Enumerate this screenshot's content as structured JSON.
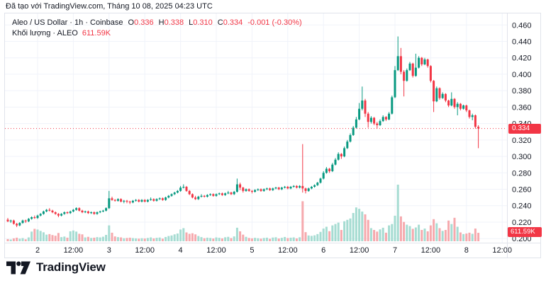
{
  "attribution": "Đã tạo với TradingView.com, Tháng 10 08, 2025 04:23 UTC",
  "legend": {
    "symbol_title": "Aleo / US Dollar · 1h · Coinbase",
    "ohlc": {
      "o_label": "O",
      "o": "0.336",
      "h_label": "H",
      "h": "0.338",
      "l_label": "L",
      "l": "0.310",
      "c_label": "C",
      "c": "0.334",
      "change": "-0.001 (-0.30%)"
    },
    "volume_title": "Khối lượng · ALEO",
    "volume_value": "611.59K"
  },
  "footer": {
    "brand": "TradingView"
  },
  "colors": {
    "up": "#089981",
    "down": "#f23645",
    "vol_up": "#a6dcd2",
    "vol_down": "#f6a9ad",
    "accent_red": "#f23645",
    "text": "#131722",
    "grid": "#f0f3fa",
    "axis_border": "#e0e3eb",
    "background": "#ffffff"
  },
  "chart_data": {
    "type": "candlestick+volume",
    "symbol": "Aleo / US Dollar",
    "exchange": "Coinbase",
    "interval": "1h",
    "legend_position": "top-left",
    "grid": true,
    "ylim": [
      0.195,
      0.474
    ],
    "price_axis_ticks": [
      0.2,
      0.22,
      0.24,
      0.26,
      0.28,
      0.3,
      0.32,
      0.34,
      0.36,
      0.38,
      0.4,
      0.42,
      0.44,
      0.46
    ],
    "time_ticks": [
      {
        "i": 10,
        "label": "2"
      },
      {
        "i": 22,
        "label": "12:00"
      },
      {
        "i": 34,
        "label": "3"
      },
      {
        "i": 46,
        "label": "12:00"
      },
      {
        "i": 58,
        "label": "4"
      },
      {
        "i": 70,
        "label": "12:00"
      },
      {
        "i": 82,
        "label": "5"
      },
      {
        "i": 94,
        "label": "12:00"
      },
      {
        "i": 106,
        "label": "6"
      },
      {
        "i": 118,
        "label": "12:00"
      },
      {
        "i": 130,
        "label": "7"
      },
      {
        "i": 142,
        "label": "12:00"
      },
      {
        "i": 154,
        "label": "8"
      },
      {
        "i": 166,
        "label": "12:00"
      }
    ],
    "last": {
      "open": 0.336,
      "high": 0.338,
      "low": 0.31,
      "close": 0.334,
      "change": -0.001,
      "change_pct": "-0.30%",
      "volume_display": "611.59K"
    },
    "volume_unit": "K",
    "candles_format": [
      "open",
      "high",
      "low",
      "close",
      "volume"
    ],
    "candles": [
      [
        0.223,
        0.225,
        0.22,
        0.221,
        160
      ],
      [
        0.221,
        0.223,
        0.219,
        0.222,
        130
      ],
      [
        0.222,
        0.223,
        0.217,
        0.218,
        210
      ],
      [
        0.218,
        0.219,
        0.214,
        0.216,
        260
      ],
      [
        0.216,
        0.22,
        0.215,
        0.219,
        190
      ],
      [
        0.219,
        0.223,
        0.218,
        0.222,
        230
      ],
      [
        0.222,
        0.223,
        0.219,
        0.221,
        140
      ],
      [
        0.221,
        0.225,
        0.22,
        0.224,
        280
      ],
      [
        0.224,
        0.227,
        0.223,
        0.226,
        700
      ],
      [
        0.226,
        0.228,
        0.224,
        0.225,
        900
      ],
      [
        0.225,
        0.229,
        0.224,
        0.228,
        850
      ],
      [
        0.228,
        0.231,
        0.227,
        0.23,
        750
      ],
      [
        0.23,
        0.234,
        0.229,
        0.233,
        650
      ],
      [
        0.233,
        0.236,
        0.232,
        0.235,
        480
      ],
      [
        0.235,
        0.237,
        0.233,
        0.234,
        520
      ],
      [
        0.234,
        0.235,
        0.231,
        0.232,
        450
      ],
      [
        0.232,
        0.233,
        0.229,
        0.23,
        400
      ],
      [
        0.23,
        0.231,
        0.226,
        0.228,
        600
      ],
      [
        0.228,
        0.231,
        0.227,
        0.23,
        300
      ],
      [
        0.23,
        0.233,
        0.229,
        0.232,
        340
      ],
      [
        0.232,
        0.233,
        0.23,
        0.231,
        260
      ],
      [
        0.231,
        0.234,
        0.23,
        0.233,
        720
      ],
      [
        0.233,
        0.236,
        0.232,
        0.235,
        780
      ],
      [
        0.235,
        0.238,
        0.234,
        0.237,
        700
      ],
      [
        0.237,
        0.238,
        0.233,
        0.234,
        540
      ],
      [
        0.234,
        0.235,
        0.231,
        0.232,
        500
      ],
      [
        0.232,
        0.234,
        0.231,
        0.233,
        280
      ],
      [
        0.233,
        0.234,
        0.23,
        0.231,
        320
      ],
      [
        0.231,
        0.233,
        0.23,
        0.232,
        240
      ],
      [
        0.232,
        0.233,
        0.229,
        0.23,
        260
      ],
      [
        0.23,
        0.233,
        0.229,
        0.232,
        300
      ],
      [
        0.232,
        0.234,
        0.231,
        0.233,
        280
      ],
      [
        0.233,
        0.235,
        0.232,
        0.234,
        330
      ],
      [
        0.234,
        0.238,
        0.233,
        0.237,
        460
      ],
      [
        0.237,
        0.258,
        0.236,
        0.249,
        1150
      ],
      [
        0.249,
        0.251,
        0.246,
        0.247,
        620
      ],
      [
        0.247,
        0.248,
        0.245,
        0.246,
        350
      ],
      [
        0.246,
        0.249,
        0.245,
        0.248,
        300
      ],
      [
        0.248,
        0.249,
        0.244,
        0.245,
        280
      ],
      [
        0.245,
        0.247,
        0.243,
        0.246,
        220
      ],
      [
        0.246,
        0.247,
        0.243,
        0.245,
        240
      ],
      [
        0.245,
        0.246,
        0.242,
        0.244,
        260
      ],
      [
        0.244,
        0.247,
        0.243,
        0.246,
        230
      ],
      [
        0.246,
        0.248,
        0.245,
        0.247,
        210
      ],
      [
        0.247,
        0.248,
        0.244,
        0.245,
        190
      ],
      [
        0.245,
        0.248,
        0.244,
        0.247,
        220
      ],
      [
        0.247,
        0.248,
        0.244,
        0.245,
        200
      ],
      [
        0.245,
        0.248,
        0.244,
        0.247,
        240
      ],
      [
        0.247,
        0.25,
        0.246,
        0.248,
        280
      ],
      [
        0.248,
        0.249,
        0.245,
        0.246,
        210
      ],
      [
        0.246,
        0.249,
        0.245,
        0.248,
        250
      ],
      [
        0.248,
        0.25,
        0.247,
        0.249,
        270
      ],
      [
        0.249,
        0.25,
        0.246,
        0.247,
        190
      ],
      [
        0.247,
        0.251,
        0.246,
        0.25,
        310
      ],
      [
        0.25,
        0.253,
        0.249,
        0.252,
        380
      ],
      [
        0.252,
        0.255,
        0.251,
        0.254,
        420
      ],
      [
        0.254,
        0.257,
        0.253,
        0.256,
        500
      ],
      [
        0.256,
        0.259,
        0.255,
        0.258,
        560
      ],
      [
        0.258,
        0.264,
        0.257,
        0.262,
        850
      ],
      [
        0.262,
        0.266,
        0.261,
        0.263,
        950
      ],
      [
        0.263,
        0.264,
        0.257,
        0.258,
        640
      ],
      [
        0.258,
        0.259,
        0.253,
        0.254,
        540
      ],
      [
        0.254,
        0.255,
        0.249,
        0.25,
        580
      ],
      [
        0.25,
        0.252,
        0.247,
        0.248,
        500
      ],
      [
        0.248,
        0.252,
        0.247,
        0.251,
        380
      ],
      [
        0.251,
        0.254,
        0.25,
        0.252,
        300
      ],
      [
        0.252,
        0.253,
        0.25,
        0.251,
        220
      ],
      [
        0.251,
        0.254,
        0.25,
        0.253,
        260
      ],
      [
        0.253,
        0.255,
        0.252,
        0.254,
        240
      ],
      [
        0.254,
        0.255,
        0.251,
        0.252,
        200
      ],
      [
        0.252,
        0.255,
        0.251,
        0.254,
        280
      ],
      [
        0.254,
        0.256,
        0.253,
        0.255,
        250
      ],
      [
        0.255,
        0.256,
        0.252,
        0.253,
        210
      ],
      [
        0.253,
        0.256,
        0.252,
        0.255,
        290
      ],
      [
        0.255,
        0.258,
        0.254,
        0.256,
        320
      ],
      [
        0.256,
        0.257,
        0.253,
        0.254,
        230
      ],
      [
        0.254,
        0.258,
        0.253,
        0.257,
        350
      ],
      [
        0.257,
        0.273,
        0.256,
        0.266,
        980
      ],
      [
        0.266,
        0.268,
        0.259,
        0.262,
        720
      ],
      [
        0.262,
        0.263,
        0.256,
        0.258,
        480
      ],
      [
        0.258,
        0.261,
        0.257,
        0.26,
        320
      ],
      [
        0.26,
        0.261,
        0.257,
        0.258,
        240
      ],
      [
        0.258,
        0.259,
        0.255,
        0.257,
        210
      ],
      [
        0.257,
        0.26,
        0.256,
        0.259,
        250
      ],
      [
        0.259,
        0.261,
        0.258,
        0.26,
        220
      ],
      [
        0.26,
        0.261,
        0.257,
        0.258,
        190
      ],
      [
        0.258,
        0.261,
        0.257,
        0.26,
        240
      ],
      [
        0.26,
        0.262,
        0.259,
        0.261,
        260
      ],
      [
        0.261,
        0.262,
        0.258,
        0.259,
        180
      ],
      [
        0.259,
        0.262,
        0.258,
        0.261,
        270
      ],
      [
        0.261,
        0.263,
        0.26,
        0.262,
        290
      ],
      [
        0.262,
        0.263,
        0.259,
        0.26,
        200
      ],
      [
        0.26,
        0.263,
        0.259,
        0.262,
        250
      ],
      [
        0.262,
        0.264,
        0.261,
        0.263,
        310
      ],
      [
        0.263,
        0.264,
        0.26,
        0.261,
        230
      ],
      [
        0.261,
        0.264,
        0.26,
        0.263,
        260
      ],
      [
        0.263,
        0.265,
        0.262,
        0.264,
        280
      ],
      [
        0.264,
        0.265,
        0.261,
        0.262,
        210
      ],
      [
        0.262,
        0.265,
        0.261,
        0.264,
        290
      ],
      [
        0.264,
        0.315,
        0.256,
        0.261,
        2900
      ],
      [
        0.261,
        0.262,
        0.255,
        0.258,
        660
      ],
      [
        0.258,
        0.262,
        0.257,
        0.261,
        420
      ],
      [
        0.261,
        0.264,
        0.26,
        0.263,
        390
      ],
      [
        0.263,
        0.266,
        0.262,
        0.265,
        430
      ],
      [
        0.265,
        0.269,
        0.264,
        0.268,
        520
      ],
      [
        0.268,
        0.274,
        0.267,
        0.273,
        680
      ],
      [
        0.273,
        0.282,
        0.272,
        0.28,
        920
      ],
      [
        0.28,
        0.287,
        0.279,
        0.285,
        1050
      ],
      [
        0.285,
        0.286,
        0.28,
        0.282,
        730
      ],
      [
        0.282,
        0.292,
        0.281,
        0.29,
        1150
      ],
      [
        0.29,
        0.298,
        0.289,
        0.296,
        1250
      ],
      [
        0.296,
        0.305,
        0.295,
        0.303,
        1350
      ],
      [
        0.303,
        0.304,
        0.297,
        0.3,
        820
      ],
      [
        0.3,
        0.312,
        0.299,
        0.31,
        1450
      ],
      [
        0.31,
        0.32,
        0.309,
        0.318,
        1550
      ],
      [
        0.318,
        0.328,
        0.317,
        0.326,
        1650
      ],
      [
        0.326,
        0.337,
        0.325,
        0.335,
        2050
      ],
      [
        0.335,
        0.348,
        0.334,
        0.345,
        2450
      ],
      [
        0.345,
        0.365,
        0.344,
        0.358,
        2350
      ],
      [
        0.358,
        0.385,
        0.356,
        0.368,
        2150
      ],
      [
        0.368,
        0.37,
        0.348,
        0.352,
        1950
      ],
      [
        0.352,
        0.354,
        0.335,
        0.342,
        1550
      ],
      [
        0.342,
        0.349,
        0.34,
        0.347,
        950
      ],
      [
        0.347,
        0.348,
        0.338,
        0.34,
        820
      ],
      [
        0.34,
        0.342,
        0.334,
        0.338,
        700
      ],
      [
        0.338,
        0.345,
        0.337,
        0.343,
        860
      ],
      [
        0.343,
        0.35,
        0.342,
        0.348,
        980
      ],
      [
        0.348,
        0.349,
        0.343,
        0.345,
        620
      ],
      [
        0.345,
        0.354,
        0.344,
        0.352,
        1150
      ],
      [
        0.352,
        0.374,
        0.351,
        0.372,
        1250
      ],
      [
        0.372,
        0.41,
        0.371,
        0.405,
        1850
      ],
      [
        0.405,
        0.446,
        0.404,
        0.422,
        4100
      ],
      [
        0.422,
        0.432,
        0.4,
        0.403,
        1800
      ],
      [
        0.403,
        0.405,
        0.373,
        0.392,
        1400
      ],
      [
        0.392,
        0.407,
        0.391,
        0.405,
        1200
      ],
      [
        0.405,
        0.415,
        0.404,
        0.413,
        1100
      ],
      [
        0.413,
        0.414,
        0.396,
        0.398,
        900
      ],
      [
        0.398,
        0.425,
        0.397,
        0.408,
        1000
      ],
      [
        0.408,
        0.422,
        0.407,
        0.42,
        1200
      ],
      [
        0.42,
        0.421,
        0.41,
        0.412,
        820
      ],
      [
        0.412,
        0.42,
        0.411,
        0.418,
        920
      ],
      [
        0.418,
        0.419,
        0.408,
        0.41,
        720
      ],
      [
        0.41,
        0.411,
        0.39,
        0.392,
        1150
      ],
      [
        0.392,
        0.393,
        0.354,
        0.367,
        1600
      ],
      [
        0.367,
        0.385,
        0.366,
        0.383,
        1300
      ],
      [
        0.383,
        0.384,
        0.369,
        0.371,
        950
      ],
      [
        0.371,
        0.378,
        0.37,
        0.376,
        750
      ],
      [
        0.376,
        0.377,
        0.366,
        0.368,
        820
      ],
      [
        0.368,
        0.369,
        0.36,
        0.362,
        1500
      ],
      [
        0.362,
        0.378,
        0.361,
        0.37,
        1250
      ],
      [
        0.37,
        0.371,
        0.358,
        0.36,
        1700
      ],
      [
        0.36,
        0.366,
        0.35,
        0.364,
        1050
      ],
      [
        0.364,
        0.365,
        0.356,
        0.358,
        640
      ],
      [
        0.358,
        0.363,
        0.357,
        0.362,
        520
      ],
      [
        0.362,
        0.363,
        0.354,
        0.356,
        560
      ],
      [
        0.356,
        0.357,
        0.346,
        0.348,
        620
      ],
      [
        0.348,
        0.352,
        0.344,
        0.35,
        540
      ],
      [
        0.35,
        0.351,
        0.334,
        0.336,
        920
      ],
      [
        0.336,
        0.338,
        0.31,
        0.334,
        611.59
      ]
    ]
  }
}
